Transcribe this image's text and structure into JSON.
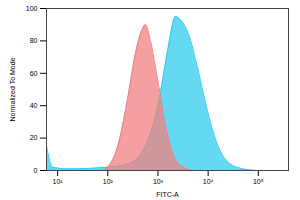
{
  "chart_data": {
    "type": "area",
    "x_label": "FITC-A",
    "y_label": "Normalized To Mode",
    "log": "x",
    "xlim": [
      6,
      400000
    ],
    "xticks": [
      {
        "value": 10,
        "label": "10¹"
      },
      {
        "value": 100,
        "label": "10²"
      },
      {
        "value": 1000,
        "label": "10³"
      },
      {
        "value": 10000,
        "label": "10⁴"
      },
      {
        "value": 100000,
        "label": "10⁵"
      }
    ],
    "ylim": [
      0,
      100
    ],
    "yticks": [
      0,
      20,
      40,
      60,
      80,
      100
    ],
    "grid": false,
    "series": [
      {
        "color": "#33ccee",
        "x": [
          6,
          8,
          16,
          100,
          251,
          501,
          1000,
          1585,
          2239,
          2818,
          3981,
          6310,
          10000,
          15849,
          25119,
          50119,
          100000
        ],
        "values": [
          15,
          2,
          1,
          2,
          4,
          12,
          40,
          75,
          95,
          93,
          85,
          62,
          35,
          15,
          5,
          1,
          0
        ]
      },
      {
        "color": "#f08080",
        "x": [
          79,
          100,
          158,
          251,
          355,
          501,
          562,
          708,
          1000,
          1413,
          1995,
          3162,
          5012
        ],
        "values": [
          0,
          2,
          15,
          45,
          72,
          88,
          90,
          80,
          55,
          28,
          10,
          2,
          0
        ]
      }
    ]
  }
}
